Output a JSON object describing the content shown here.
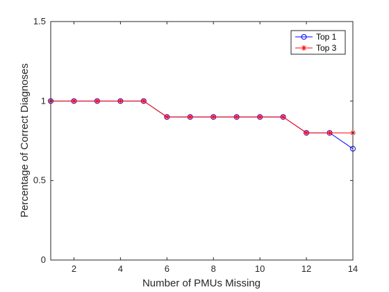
{
  "chart_data": {
    "type": "line",
    "title": "",
    "xlabel": "Number of PMUs Missing",
    "ylabel": "Percentage of Correct Diagnoses",
    "xlim": [
      1,
      14
    ],
    "ylim": [
      0,
      1.5
    ],
    "xticks": [
      2,
      4,
      6,
      8,
      10,
      12,
      14
    ],
    "yticks": [
      0,
      0.5,
      1,
      1.5
    ],
    "xtick_labels": [
      "2",
      "4",
      "6",
      "8",
      "10",
      "12",
      "14"
    ],
    "ytick_labels": [
      "0",
      "0.5",
      "1",
      "1.5"
    ],
    "grid": false,
    "legend": "top-right",
    "x": [
      1,
      2,
      3,
      4,
      5,
      6,
      7,
      8,
      9,
      10,
      11,
      12,
      13,
      14
    ],
    "series": [
      {
        "name": "Top 1",
        "color": "#0000ff",
        "marker": "circle",
        "values": [
          1,
          1,
          1,
          1,
          1,
          0.9,
          0.9,
          0.9,
          0.9,
          0.9,
          0.9,
          0.8,
          0.8,
          0.7
        ]
      },
      {
        "name": "Top 3",
        "color": "#ff0000",
        "marker": "asterisk",
        "values": [
          1,
          1,
          1,
          1,
          1,
          0.9,
          0.9,
          0.9,
          0.9,
          0.9,
          0.9,
          0.8,
          0.8,
          0.8
        ]
      }
    ]
  }
}
